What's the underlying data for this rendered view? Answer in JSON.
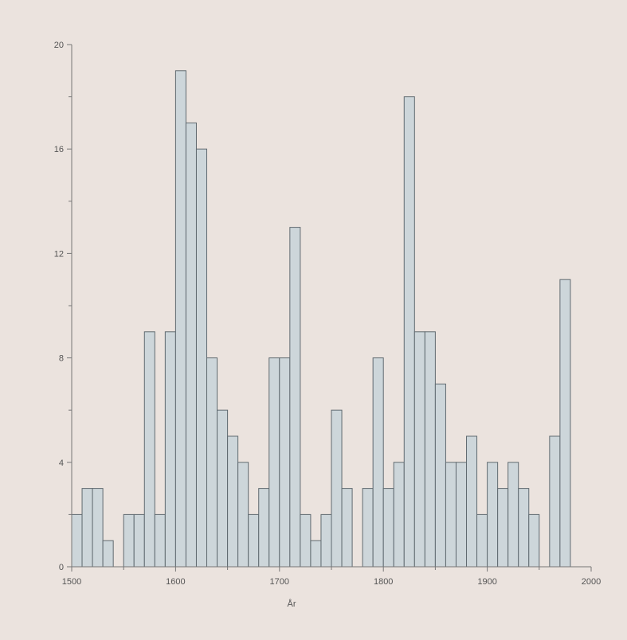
{
  "chart_data": {
    "type": "bar",
    "title": "",
    "xlabel": "År",
    "ylabel": "",
    "bin_width": 10,
    "xlim": [
      1500,
      2000
    ],
    "ylim": [
      0,
      20
    ],
    "xticks": [
      1500,
      1600,
      1700,
      1800,
      1900,
      2000
    ],
    "yticks": [
      0,
      4,
      8,
      12,
      16,
      20
    ],
    "grid": false,
    "colors": {
      "bar_fill": "#cdd6da",
      "bar_stroke": "#606a70",
      "background": "#ebe3de"
    },
    "bins_start": [
      1500,
      1510,
      1520,
      1530,
      1540,
      1550,
      1560,
      1570,
      1580,
      1590,
      1600,
      1610,
      1620,
      1630,
      1640,
      1650,
      1660,
      1670,
      1680,
      1690,
      1700,
      1710,
      1720,
      1730,
      1740,
      1750,
      1760,
      1770,
      1780,
      1790,
      1800,
      1810,
      1820,
      1830,
      1840,
      1850,
      1860,
      1870,
      1880,
      1890,
      1900,
      1910,
      1920,
      1930,
      1940,
      1950,
      1960,
      1970
    ],
    "values": [
      2,
      3,
      3,
      1,
      0,
      2,
      2,
      9,
      2,
      9,
      19,
      17,
      16,
      8,
      6,
      5,
      4,
      2,
      3,
      8,
      8,
      13,
      2,
      1,
      2,
      6,
      3,
      0,
      3,
      8,
      3,
      4,
      18,
      9,
      9,
      7,
      4,
      4,
      5,
      2,
      4,
      3,
      4,
      3,
      2,
      0,
      5,
      11
    ]
  }
}
